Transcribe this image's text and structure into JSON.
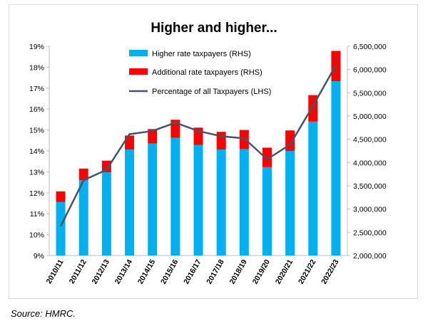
{
  "chart_data": {
    "type": "bar",
    "title": "Higher and higher...",
    "categories": [
      "2010/11",
      "2011/12",
      "2012/13",
      "2013/14",
      "2014/15",
      "2015/16",
      "2016/17",
      "2017/18",
      "2018/19",
      "2019/20",
      "2020/21",
      "2021/22",
      "2022/23"
    ],
    "series": [
      {
        "name": "Higher rate taxpayers (RHS)",
        "kind": "bar",
        "axis": "right",
        "color": "#00b0f0",
        "values": [
          3150000,
          3620000,
          3790000,
          4280000,
          4410000,
          4530000,
          4380000,
          4280000,
          4290000,
          3900000,
          4250000,
          4880000,
          5750000
        ]
      },
      {
        "name": "Additional rate taxpayers (RHS)",
        "kind": "bar-stacked",
        "axis": "right",
        "color": "#ff0000",
        "values": [
          230000,
          250000,
          250000,
          300000,
          310000,
          390000,
          370000,
          380000,
          410000,
          420000,
          440000,
          570000,
          650000
        ]
      },
      {
        "name": "Percentage of all Taxpayers (LHS)",
        "kind": "line",
        "axis": "left",
        "color": "#44546a",
        "values": [
          10.4,
          12.6,
          13.1,
          14.8,
          14.95,
          15.35,
          14.95,
          14.7,
          14.6,
          13.6,
          14.3,
          16.15,
          18.1
        ]
      }
    ],
    "left_axis": {
      "min": 9,
      "max": 19,
      "step": 1,
      "tick_labels": [
        "9%",
        "10%",
        "11%",
        "12%",
        "13%",
        "14%",
        "15%",
        "16%",
        "17%",
        "18%",
        "19%"
      ]
    },
    "right_axis": {
      "min": 2000000,
      "max": 6500000,
      "step": 500000,
      "tick_labels": [
        "2,000,000",
        "2,500,000",
        "3,000,000",
        "3,500,000",
        "4,000,000",
        "4,500,000",
        "5,000,000",
        "5,500,000",
        "6,000,000",
        "6,500,000"
      ]
    },
    "grid": false,
    "legend_position": "top-center"
  },
  "source": "Source: HMRC."
}
